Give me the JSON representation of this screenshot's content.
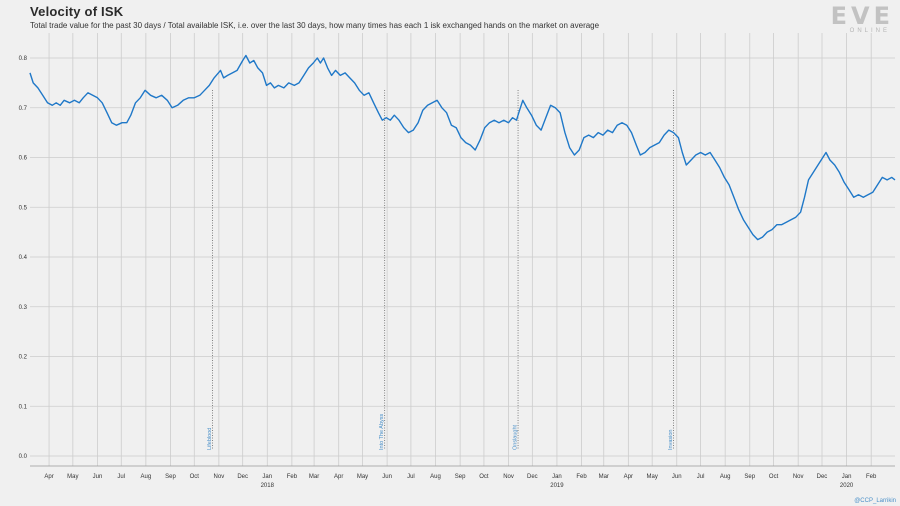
{
  "header": {
    "title": "Velocity of ISK",
    "subtitle": "Total trade value for the past 30 days / Total available ISK, i.e. over the last 30 days, how many times has each 1 isk exchanged hands on the market on average"
  },
  "logo": {
    "main": "EVE",
    "sub": "ONLINE"
  },
  "credit": "@CCP_Larrikin",
  "colors": {
    "line": "#1f78c8",
    "event": "#4a90c9",
    "grid": "#cccccc",
    "background": "#f0f0f0"
  },
  "chart_data": {
    "type": "line",
    "title": "Velocity of ISK",
    "xlabel": "",
    "ylabel": "",
    "ylim": [
      0,
      0.8
    ],
    "yticks": [
      "0.0",
      "0.1",
      "0.2",
      "0.3",
      "0.4",
      "0.5",
      "0.6",
      "0.7",
      "0.8"
    ],
    "x_range": [
      "2017-03-08",
      "2020-03-02"
    ],
    "month_ticks": [
      {
        "date": "2017-04-01",
        "label": "Apr"
      },
      {
        "date": "2017-05-01",
        "label": "May"
      },
      {
        "date": "2017-06-01",
        "label": "Jun"
      },
      {
        "date": "2017-07-01",
        "label": "Jul"
      },
      {
        "date": "2017-08-01",
        "label": "Aug"
      },
      {
        "date": "2017-09-01",
        "label": "Sep"
      },
      {
        "date": "2017-10-01",
        "label": "Oct"
      },
      {
        "date": "2017-11-01",
        "label": "Nov"
      },
      {
        "date": "2017-12-01",
        "label": "Dec"
      },
      {
        "date": "2018-01-01",
        "label": "Jan",
        "year": "2018"
      },
      {
        "date": "2018-02-01",
        "label": "Feb"
      },
      {
        "date": "2018-03-01",
        "label": "Mar"
      },
      {
        "date": "2018-04-01",
        "label": "Apr"
      },
      {
        "date": "2018-05-01",
        "label": "May"
      },
      {
        "date": "2018-06-01",
        "label": "Jun"
      },
      {
        "date": "2018-07-01",
        "label": "Jul"
      },
      {
        "date": "2018-08-01",
        "label": "Aug"
      },
      {
        "date": "2018-09-01",
        "label": "Sep"
      },
      {
        "date": "2018-10-01",
        "label": "Oct"
      },
      {
        "date": "2018-11-01",
        "label": "Nov"
      },
      {
        "date": "2018-12-01",
        "label": "Dec"
      },
      {
        "date": "2019-01-01",
        "label": "Jan",
        "year": "2019"
      },
      {
        "date": "2019-02-01",
        "label": "Feb"
      },
      {
        "date": "2019-03-01",
        "label": "Mar"
      },
      {
        "date": "2019-04-01",
        "label": "Apr"
      },
      {
        "date": "2019-05-01",
        "label": "May"
      },
      {
        "date": "2019-06-01",
        "label": "Jun"
      },
      {
        "date": "2019-07-01",
        "label": "Jul"
      },
      {
        "date": "2019-08-01",
        "label": "Aug"
      },
      {
        "date": "2019-09-01",
        "label": "Sep"
      },
      {
        "date": "2019-10-01",
        "label": "Oct"
      },
      {
        "date": "2019-11-01",
        "label": "Nov"
      },
      {
        "date": "2019-12-01",
        "label": "Dec"
      },
      {
        "date": "2020-01-01",
        "label": "Jan",
        "year": "2020"
      },
      {
        "date": "2020-02-01",
        "label": "Feb"
      }
    ],
    "events": [
      {
        "date": "2017-10-24",
        "label": "Lifeblood"
      },
      {
        "date": "2018-05-29",
        "label": "Into The Abyss"
      },
      {
        "date": "2018-11-13",
        "label": "Onslaught"
      },
      {
        "date": "2019-05-28",
        "label": "Invasion"
      }
    ],
    "series": [
      {
        "points": [
          [
            "2017-03-08",
            0.77
          ],
          [
            "2017-03-12",
            0.75
          ],
          [
            "2017-03-18",
            0.74
          ],
          [
            "2017-03-24",
            0.725
          ],
          [
            "2017-03-30",
            0.71
          ],
          [
            "2017-04-05",
            0.705
          ],
          [
            "2017-04-10",
            0.71
          ],
          [
            "2017-04-15",
            0.705
          ],
          [
            "2017-04-20",
            0.715
          ],
          [
            "2017-04-27",
            0.71
          ],
          [
            "2017-05-03",
            0.715
          ],
          [
            "2017-05-09",
            0.71
          ],
          [
            "2017-05-14",
            0.72
          ],
          [
            "2017-05-20",
            0.73
          ],
          [
            "2017-05-26",
            0.725
          ],
          [
            "2017-06-01",
            0.72
          ],
          [
            "2017-06-07",
            0.71
          ],
          [
            "2017-06-13",
            0.69
          ],
          [
            "2017-06-19",
            0.67
          ],
          [
            "2017-06-25",
            0.665
          ],
          [
            "2017-07-02",
            0.67
          ],
          [
            "2017-07-08",
            0.67
          ],
          [
            "2017-07-13",
            0.685
          ],
          [
            "2017-07-19",
            0.71
          ],
          [
            "2017-07-25",
            0.72
          ],
          [
            "2017-07-31",
            0.735
          ],
          [
            "2017-08-07",
            0.725
          ],
          [
            "2017-08-14",
            0.72
          ],
          [
            "2017-08-21",
            0.725
          ],
          [
            "2017-08-28",
            0.715
          ],
          [
            "2017-09-03",
            0.7
          ],
          [
            "2017-09-10",
            0.705
          ],
          [
            "2017-09-17",
            0.715
          ],
          [
            "2017-09-24",
            0.72
          ],
          [
            "2017-10-01",
            0.72
          ],
          [
            "2017-10-08",
            0.725
          ],
          [
            "2017-10-14",
            0.735
          ],
          [
            "2017-10-20",
            0.745
          ],
          [
            "2017-10-26",
            0.76
          ],
          [
            "2017-11-03",
            0.775
          ],
          [
            "2017-11-07",
            0.76
          ],
          [
            "2017-11-12",
            0.765
          ],
          [
            "2017-11-18",
            0.77
          ],
          [
            "2017-11-24",
            0.775
          ],
          [
            "2017-12-01",
            0.795
          ],
          [
            "2017-12-05",
            0.805
          ],
          [
            "2017-12-10",
            0.79
          ],
          [
            "2017-12-15",
            0.795
          ],
          [
            "2017-12-20",
            0.78
          ],
          [
            "2017-12-26",
            0.77
          ],
          [
            "2017-12-31",
            0.745
          ],
          [
            "2018-01-05",
            0.75
          ],
          [
            "2018-01-10",
            0.74
          ],
          [
            "2018-01-15",
            0.745
          ],
          [
            "2018-01-22",
            0.74
          ],
          [
            "2018-01-28",
            0.75
          ],
          [
            "2018-02-04",
            0.745
          ],
          [
            "2018-02-10",
            0.75
          ],
          [
            "2018-02-16",
            0.765
          ],
          [
            "2018-02-22",
            0.78
          ],
          [
            "2018-02-28",
            0.79
          ],
          [
            "2018-03-05",
            0.8
          ],
          [
            "2018-03-09",
            0.79
          ],
          [
            "2018-03-13",
            0.8
          ],
          [
            "2018-03-18",
            0.78
          ],
          [
            "2018-03-23",
            0.765
          ],
          [
            "2018-03-28",
            0.775
          ],
          [
            "2018-04-03",
            0.765
          ],
          [
            "2018-04-09",
            0.77
          ],
          [
            "2018-04-15",
            0.76
          ],
          [
            "2018-04-21",
            0.75
          ],
          [
            "2018-04-27",
            0.735
          ],
          [
            "2018-05-03",
            0.725
          ],
          [
            "2018-05-09",
            0.73
          ],
          [
            "2018-05-15",
            0.71
          ],
          [
            "2018-05-21",
            0.69
          ],
          [
            "2018-05-26",
            0.675
          ],
          [
            "2018-05-31",
            0.68
          ],
          [
            "2018-06-05",
            0.675
          ],
          [
            "2018-06-10",
            0.685
          ],
          [
            "2018-06-16",
            0.675
          ],
          [
            "2018-06-22",
            0.66
          ],
          [
            "2018-06-28",
            0.65
          ],
          [
            "2018-07-04",
            0.655
          ],
          [
            "2018-07-10",
            0.67
          ],
          [
            "2018-07-16",
            0.695
          ],
          [
            "2018-07-22",
            0.705
          ],
          [
            "2018-07-28",
            0.71
          ],
          [
            "2018-08-03",
            0.715
          ],
          [
            "2018-08-09",
            0.7
          ],
          [
            "2018-08-15",
            0.69
          ],
          [
            "2018-08-21",
            0.665
          ],
          [
            "2018-08-27",
            0.66
          ],
          [
            "2018-09-02",
            0.64
          ],
          [
            "2018-09-08",
            0.63
          ],
          [
            "2018-09-14",
            0.625
          ],
          [
            "2018-09-20",
            0.615
          ],
          [
            "2018-09-26",
            0.635
          ],
          [
            "2018-10-02",
            0.66
          ],
          [
            "2018-10-08",
            0.67
          ],
          [
            "2018-10-14",
            0.675
          ],
          [
            "2018-10-20",
            0.67
          ],
          [
            "2018-10-26",
            0.675
          ],
          [
            "2018-11-01",
            0.67
          ],
          [
            "2018-11-06",
            0.68
          ],
          [
            "2018-11-11",
            0.675
          ],
          [
            "2018-11-15",
            0.695
          ],
          [
            "2018-11-19",
            0.715
          ],
          [
            "2018-11-24",
            0.7
          ],
          [
            "2018-11-30",
            0.685
          ],
          [
            "2018-12-06",
            0.665
          ],
          [
            "2018-12-12",
            0.655
          ],
          [
            "2018-12-18",
            0.68
          ],
          [
            "2018-12-24",
            0.705
          ],
          [
            "2018-12-30",
            0.7
          ],
          [
            "2019-01-05",
            0.69
          ],
          [
            "2019-01-11",
            0.65
          ],
          [
            "2019-01-17",
            0.62
          ],
          [
            "2019-01-23",
            0.605
          ],
          [
            "2019-01-29",
            0.615
          ],
          [
            "2019-02-04",
            0.64
          ],
          [
            "2019-02-10",
            0.645
          ],
          [
            "2019-02-16",
            0.64
          ],
          [
            "2019-02-22",
            0.65
          ],
          [
            "2019-02-28",
            0.645
          ],
          [
            "2019-03-06",
            0.655
          ],
          [
            "2019-03-12",
            0.65
          ],
          [
            "2019-03-18",
            0.665
          ],
          [
            "2019-03-24",
            0.67
          ],
          [
            "2019-03-30",
            0.665
          ],
          [
            "2019-04-05",
            0.65
          ],
          [
            "2019-04-11",
            0.625
          ],
          [
            "2019-04-16",
            0.605
          ],
          [
            "2019-04-22",
            0.61
          ],
          [
            "2019-04-28",
            0.62
          ],
          [
            "2019-05-04",
            0.625
          ],
          [
            "2019-05-10",
            0.63
          ],
          [
            "2019-05-16",
            0.645
          ],
          [
            "2019-05-22",
            0.655
          ],
          [
            "2019-05-28",
            0.65
          ],
          [
            "2019-06-03",
            0.64
          ],
          [
            "2019-06-08",
            0.61
          ],
          [
            "2019-06-13",
            0.585
          ],
          [
            "2019-06-19",
            0.595
          ],
          [
            "2019-06-25",
            0.605
          ],
          [
            "2019-07-01",
            0.61
          ],
          [
            "2019-07-07",
            0.605
          ],
          [
            "2019-07-13",
            0.61
          ],
          [
            "2019-07-19",
            0.595
          ],
          [
            "2019-07-25",
            0.58
          ],
          [
            "2019-07-31",
            0.56
          ],
          [
            "2019-08-06",
            0.545
          ],
          [
            "2019-08-12",
            0.52
          ],
          [
            "2019-08-18",
            0.495
          ],
          [
            "2019-08-24",
            0.475
          ],
          [
            "2019-08-30",
            0.46
          ],
          [
            "2019-09-05",
            0.445
          ],
          [
            "2019-09-11",
            0.435
          ],
          [
            "2019-09-17",
            0.44
          ],
          [
            "2019-09-23",
            0.45
          ],
          [
            "2019-09-29",
            0.455
          ],
          [
            "2019-10-05",
            0.465
          ],
          [
            "2019-10-11",
            0.465
          ],
          [
            "2019-10-17",
            0.47
          ],
          [
            "2019-10-23",
            0.475
          ],
          [
            "2019-10-29",
            0.48
          ],
          [
            "2019-11-04",
            0.49
          ],
          [
            "2019-11-09",
            0.52
          ],
          [
            "2019-11-14",
            0.555
          ],
          [
            "2019-11-20",
            0.57
          ],
          [
            "2019-11-26",
            0.585
          ],
          [
            "2019-12-02",
            0.6
          ],
          [
            "2019-12-06",
            0.61
          ],
          [
            "2019-12-11",
            0.595
          ],
          [
            "2019-12-17",
            0.585
          ],
          [
            "2019-12-23",
            0.57
          ],
          [
            "2019-12-29",
            0.55
          ],
          [
            "2020-01-04",
            0.535
          ],
          [
            "2020-01-10",
            0.52
          ],
          [
            "2020-01-16",
            0.525
          ],
          [
            "2020-01-22",
            0.52
          ],
          [
            "2020-01-28",
            0.525
          ],
          [
            "2020-02-03",
            0.53
          ],
          [
            "2020-02-09",
            0.545
          ],
          [
            "2020-02-15",
            0.56
          ],
          [
            "2020-02-21",
            0.555
          ],
          [
            "2020-02-27",
            0.56
          ],
          [
            "2020-03-02",
            0.555
          ]
        ]
      }
    ]
  }
}
